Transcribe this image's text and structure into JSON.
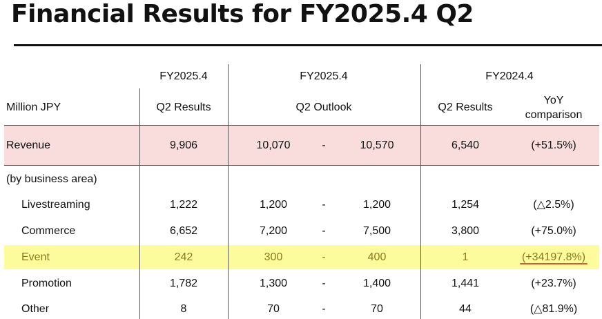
{
  "title": "Financial Results for FY2025.4 Q2",
  "colors": {
    "revenue_highlight": "#f9dcdc",
    "event_highlight": "#fcfc9d",
    "event_text": "#8a7a1a",
    "underline": "#e0553a"
  },
  "header": {
    "col1_top": "FY2025.4",
    "col2_top": "FY2025.4",
    "col3_top": "FY2024.4",
    "unit": "Million JPY",
    "col1_sub": "Q2 Results",
    "col2_sub": "Q2 Outlook",
    "col3_sub": "Q2 Results",
    "col4_sub_line1": "YoY",
    "col4_sub_line2": "comparison"
  },
  "revenue": {
    "label": "Revenue",
    "q2_results": "9,906",
    "outlook_low": "10,070",
    "dash": "-",
    "outlook_high": "10,570",
    "prev_q2": "6,540",
    "yoy": "(+51.5%)"
  },
  "section_label": "(by business area)",
  "rows": [
    {
      "label": "Livestreaming",
      "q2_results": "1,222",
      "outlook_low": "1,200",
      "dash": "-",
      "outlook_high": "1,200",
      "prev_q2": "1,254",
      "yoy": "(△2.5%)"
    },
    {
      "label": "Commerce",
      "q2_results": "6,652",
      "outlook_low": "7,200",
      "dash": "-",
      "outlook_high": "7,500",
      "prev_q2": "3,800",
      "yoy": "(+75.0%)"
    },
    {
      "label": "Event",
      "q2_results": "242",
      "outlook_low": "300",
      "dash": "-",
      "outlook_high": "400",
      "prev_q2": "1",
      "yoy": "(+34197.8%)"
    },
    {
      "label": "Promotion",
      "q2_results": "1,782",
      "outlook_low": "1,300",
      "dash": "-",
      "outlook_high": "1,400",
      "prev_q2": "1,441",
      "yoy": "(+23.7%)"
    },
    {
      "label": "Other",
      "q2_results": "8",
      "outlook_low": "70",
      "dash": "-",
      "outlook_high": "70",
      "prev_q2": "44",
      "yoy": "(△81.9%)"
    }
  ]
}
